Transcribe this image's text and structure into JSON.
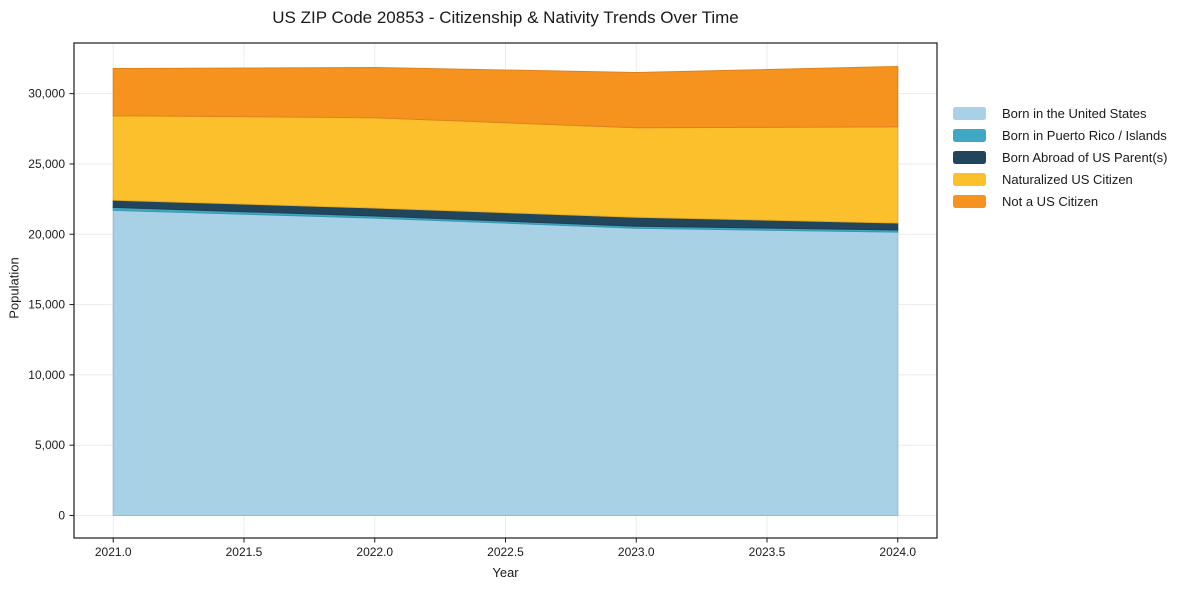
{
  "chart_data": {
    "type": "area",
    "stacked": true,
    "title": "US ZIP Code 20853 - Citizenship & Nativity Trends Over Time",
    "xlabel": "Year",
    "ylabel": "Population",
    "x": [
      2021,
      2022,
      2023,
      2024
    ],
    "xlim": [
      2020.85,
      2024.15
    ],
    "ylim": [
      -1600,
      33600
    ],
    "grid": true,
    "legend_position": "right-outside",
    "axis_color": "#1a1a1a",
    "grid_color": "#ebebeb",
    "xticks": [
      {
        "value": 2021.0,
        "label": "2021.0"
      },
      {
        "value": 2021.5,
        "label": "2021.5"
      },
      {
        "value": 2022.0,
        "label": "2022.0"
      },
      {
        "value": 2022.5,
        "label": "2022.5"
      },
      {
        "value": 2023.0,
        "label": "2023.0"
      },
      {
        "value": 2023.5,
        "label": "2023.5"
      },
      {
        "value": 2024.0,
        "label": "2024.0"
      }
    ],
    "yticks": [
      {
        "value": 0,
        "label": "0"
      },
      {
        "value": 5000,
        "label": "5,000"
      },
      {
        "value": 10000,
        "label": "10,000"
      },
      {
        "value": 15000,
        "label": "15,000"
      },
      {
        "value": 20000,
        "label": "20,000"
      },
      {
        "value": 25000,
        "label": "25,000"
      },
      {
        "value": 30000,
        "label": "30,000"
      }
    ],
    "series": [
      {
        "name": "Born in the United States",
        "color": "#a9d1e6",
        "values": [
          21700,
          21150,
          20430,
          20150
        ]
      },
      {
        "name": "Born in Puerto Rico / Islands",
        "color": "#3fa8c5",
        "values": [
          210,
          150,
          140,
          150
        ]
      },
      {
        "name": "Born Abroad of US Parent(s)",
        "color": "#21455a",
        "values": [
          510,
          570,
          640,
          500
        ]
      },
      {
        "name": "Naturalized US Citizen",
        "color": "#fdc02d",
        "values": [
          6010,
          6420,
          6360,
          6840
        ]
      },
      {
        "name": "Not a US Citizen",
        "color": "#f6921e",
        "values": [
          3360,
          3570,
          3930,
          4290
        ]
      }
    ]
  }
}
